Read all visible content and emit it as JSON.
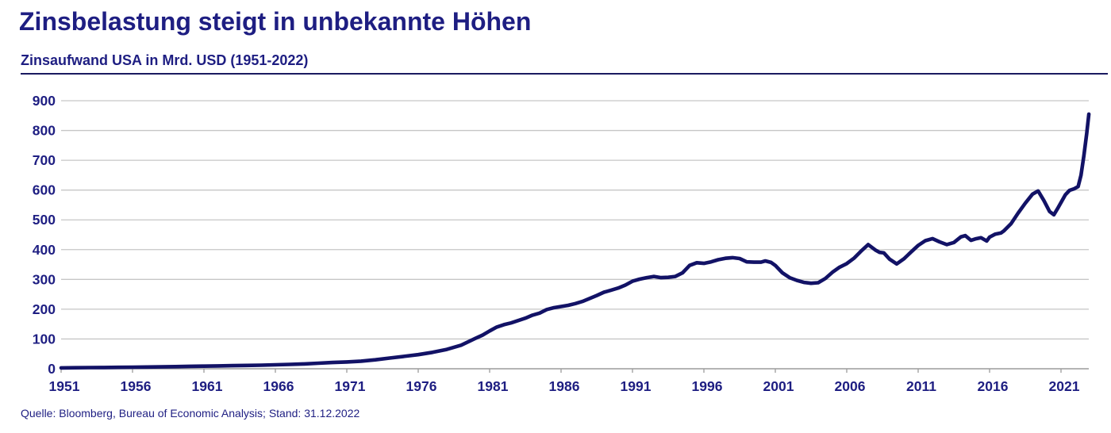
{
  "header": {
    "title": "Zinsbelastung steigt in unbekannte Höhen",
    "subtitle": "Zinsaufwand USA in Mrd. USD (1951-2022)"
  },
  "footer": {
    "source": "Quelle: Bloomberg, Bureau of Economic Analysis; Stand: 31.12.2022"
  },
  "colors": {
    "text_navy": "#1e1e82",
    "line_navy": "#121266",
    "rule_navy": "#1a1a60",
    "grid_gray": "#c6c6c6",
    "axis_gray": "#9b9b9b",
    "background": "#ffffff"
  },
  "chart_data": {
    "type": "line",
    "title": "Zinsbelastung steigt in unbekannte Höhen",
    "subtitle": "Zinsaufwand USA in Mrd. USD (1951-2022)",
    "unit": "Mrd. USD",
    "xlabel": "",
    "ylabel": "",
    "xlim": [
      1951,
      2023.4
    ],
    "ylim": [
      0,
      900
    ],
    "x_ticks": [
      1951,
      1956,
      1961,
      1966,
      1971,
      1976,
      1981,
      1986,
      1991,
      1996,
      2001,
      2006,
      2011,
      2016,
      2021
    ],
    "y_ticks": [
      0,
      100,
      200,
      300,
      400,
      500,
      600,
      700,
      800,
      900
    ],
    "grid": "horizontal",
    "legend_position": "none",
    "series": [
      {
        "name": "Zinsaufwand USA in Mrd. USD",
        "points": [
          [
            1951,
            3
          ],
          [
            1952,
            3.5
          ],
          [
            1953,
            4
          ],
          [
            1954,
            4.3
          ],
          [
            1955,
            4.8
          ],
          [
            1956,
            5.3
          ],
          [
            1957,
            5.9
          ],
          [
            1958,
            6.3
          ],
          [
            1959,
            7.3
          ],
          [
            1960,
            8.3
          ],
          [
            1961,
            8.9
          ],
          [
            1962,
            9.7
          ],
          [
            1963,
            10.5
          ],
          [
            1964,
            11.3
          ],
          [
            1965,
            12.1
          ],
          [
            1966,
            13.3
          ],
          [
            1967,
            14.6
          ],
          [
            1968,
            16.3
          ],
          [
            1969,
            18.6
          ],
          [
            1970,
            21
          ],
          [
            1971,
            23
          ],
          [
            1972,
            25.5
          ],
          [
            1973,
            30
          ],
          [
            1974,
            36
          ],
          [
            1975,
            41.5
          ],
          [
            1976,
            47.5
          ],
          [
            1977,
            55
          ],
          [
            1978,
            65
          ],
          [
            1979,
            79
          ],
          [
            1980,
            102
          ],
          [
            1980.5,
            113
          ],
          [
            1981,
            127
          ],
          [
            1981.5,
            140
          ],
          [
            1982,
            148
          ],
          [
            1982.5,
            154
          ],
          [
            1983,
            162
          ],
          [
            1983.5,
            170
          ],
          [
            1984,
            180
          ],
          [
            1984.5,
            187
          ],
          [
            1985,
            199
          ],
          [
            1985.5,
            205
          ],
          [
            1986,
            209
          ],
          [
            1986.5,
            213
          ],
          [
            1987,
            219
          ],
          [
            1987.5,
            226
          ],
          [
            1988,
            236
          ],
          [
            1988.5,
            246
          ],
          [
            1989,
            257
          ],
          [
            1989.5,
            264
          ],
          [
            1990,
            271
          ],
          [
            1990.5,
            281
          ],
          [
            1991,
            294
          ],
          [
            1991.5,
            301
          ],
          [
            1992,
            306
          ],
          [
            1992.5,
            310
          ],
          [
            1993,
            306
          ],
          [
            1993.5,
            307
          ],
          [
            1994,
            310
          ],
          [
            1994.5,
            322
          ],
          [
            1995,
            347
          ],
          [
            1995.5,
            356
          ],
          [
            1996,
            354
          ],
          [
            1996.5,
            359
          ],
          [
            1997,
            366
          ],
          [
            1997.5,
            371
          ],
          [
            1998,
            373
          ],
          [
            1998.5,
            370
          ],
          [
            1999,
            359
          ],
          [
            1999.5,
            358
          ],
          [
            2000,
            358
          ],
          [
            2000.3,
            362
          ],
          [
            2000.7,
            357
          ],
          [
            2001,
            347
          ],
          [
            2001.5,
            322
          ],
          [
            2002,
            306
          ],
          [
            2002.5,
            297
          ],
          [
            2003,
            290
          ],
          [
            2003.5,
            287
          ],
          [
            2004,
            289
          ],
          [
            2004.5,
            303
          ],
          [
            2005,
            324
          ],
          [
            2005.5,
            341
          ],
          [
            2006,
            353
          ],
          [
            2006.5,
            371
          ],
          [
            2007,
            395
          ],
          [
            2007.5,
            417
          ],
          [
            2008,
            399
          ],
          [
            2008.3,
            391
          ],
          [
            2008.6,
            389
          ],
          [
            2009,
            368
          ],
          [
            2009.5,
            352
          ],
          [
            2010,
            369
          ],
          [
            2010.5,
            392
          ],
          [
            2011,
            414
          ],
          [
            2011.5,
            430
          ],
          [
            2012,
            437
          ],
          [
            2012.5,
            426
          ],
          [
            2013,
            417
          ],
          [
            2013.5,
            424
          ],
          [
            2014,
            443
          ],
          [
            2014.3,
            447
          ],
          [
            2014.7,
            431
          ],
          [
            2015,
            436
          ],
          [
            2015.4,
            440
          ],
          [
            2015.8,
            429
          ],
          [
            2016,
            442
          ],
          [
            2016.4,
            452
          ],
          [
            2016.8,
            456
          ],
          [
            2017,
            463
          ],
          [
            2017.5,
            487
          ],
          [
            2018,
            523
          ],
          [
            2018.5,
            556
          ],
          [
            2019,
            586
          ],
          [
            2019.4,
            597
          ],
          [
            2019.8,
            565
          ],
          [
            2020.2,
            528
          ],
          [
            2020.5,
            517
          ],
          [
            2020.8,
            541
          ],
          [
            2021,
            558
          ],
          [
            2021.3,
            584
          ],
          [
            2021.6,
            599
          ],
          [
            2021.9,
            604
          ],
          [
            2022.2,
            612
          ],
          [
            2022.4,
            650
          ],
          [
            2022.6,
            715
          ],
          [
            2022.8,
            790
          ],
          [
            2022.95,
            855
          ]
        ]
      }
    ]
  }
}
